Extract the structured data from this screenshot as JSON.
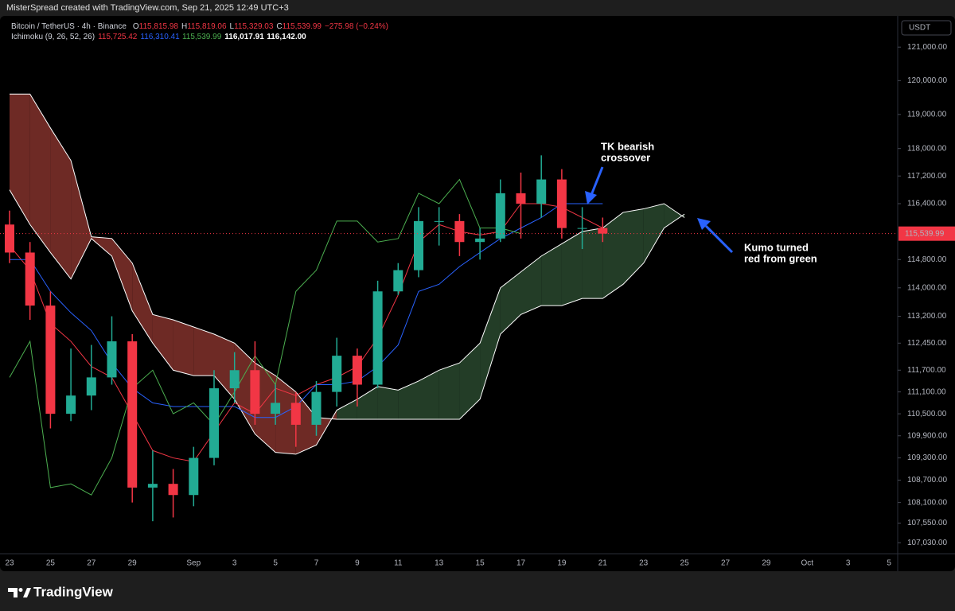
{
  "header": {
    "credit": "MisterSpread created with TradingView.com, Sep 21, 2025 12:49 UTC+3"
  },
  "footer": {
    "brand": "TradingView"
  },
  "chart_data": {
    "type": "candlestick",
    "legend": {
      "symbol": "Bitcoin / TetherUS · 4h · Binance",
      "ohlc": [
        {
          "key": "O",
          "value": "115,815.98"
        },
        {
          "key": "H",
          "value": "115,819.06"
        },
        {
          "key": "L",
          "value": "115,329.03"
        },
        {
          "key": "C",
          "value": "115,539.99"
        }
      ],
      "change": "−275.98 (−0.24%)",
      "indicator": "Ichimoku (9, 26, 52, 26)",
      "indicator_values": [
        {
          "value": "115,725.42",
          "color": "#f23645"
        },
        {
          "value": "116,310.41",
          "color": "#2962ff"
        },
        {
          "value": "115,539.99",
          "color": "#4caf50"
        },
        {
          "value": "116,017.91",
          "color": "#ffffff"
        },
        {
          "value": "116,142.00",
          "color": "#ffffff"
        }
      ]
    },
    "currency": "USDT",
    "categories": [
      "23",
      null,
      "25",
      null,
      "27",
      null,
      "29",
      null,
      null,
      "Sep",
      null,
      "3",
      null,
      "5",
      null,
      "7",
      null,
      "9",
      null,
      "11",
      null,
      "13",
      null,
      "15",
      null,
      "17",
      null,
      "19",
      null,
      "21",
      null,
      "23",
      null,
      "25",
      null,
      "27",
      null,
      "29",
      null,
      "Oct",
      null,
      "3",
      null,
      "5"
    ],
    "open": [
      115800,
      115000,
      113500,
      110500,
      111000,
      111500,
      112500,
      108500,
      108600,
      108300,
      109300,
      111200,
      111700,
      110500,
      110800,
      110200,
      111100,
      112100,
      111300,
      113900,
      114500,
      115900,
      115900,
      115300,
      115400,
      116700,
      116400,
      117100,
      115700,
      115700,
      null,
      null,
      null,
      null,
      null,
      null,
      null,
      null,
      null,
      null,
      null,
      null,
      null,
      null
    ],
    "high": [
      116200,
      115300,
      113900,
      112300,
      112400,
      113200,
      112700,
      109500,
      109000,
      109600,
      111700,
      112200,
      112500,
      111300,
      111100,
      111400,
      112600,
      112300,
      114200,
      114700,
      116300,
      116300,
      116100,
      115700,
      117100,
      117300,
      117800,
      117400,
      116300,
      116000,
      null,
      null,
      null,
      null,
      null,
      null,
      null,
      null,
      null,
      null,
      null,
      null,
      null,
      null
    ],
    "low": [
      114700,
      113100,
      110100,
      110300,
      110600,
      111300,
      108100,
      107600,
      107700,
      108000,
      109100,
      110800,
      110200,
      110200,
      109600,
      109900,
      110700,
      110700,
      111200,
      113800,
      114300,
      115200,
      114900,
      114800,
      115300,
      115400,
      116000,
      115400,
      115100,
      115300,
      null,
      null,
      null,
      null,
      null,
      null,
      null,
      null,
      null,
      null,
      null,
      null,
      null,
      null
    ],
    "close": [
      115000,
      113500,
      110500,
      111000,
      111500,
      112500,
      108500,
      108600,
      108300,
      109300,
      111200,
      111700,
      110500,
      110800,
      110200,
      111100,
      112100,
      111300,
      113900,
      114500,
      115900,
      115900,
      115300,
      115400,
      116700,
      116400,
      117100,
      115700,
      115700,
      115540,
      null,
      null,
      null,
      null,
      null,
      null,
      null,
      null,
      null,
      null,
      null,
      null,
      null,
      null
    ],
    "up_color": "#22ab94",
    "down_color": "#f23645",
    "lines": [
      {
        "color": "#f23645",
        "values": [
          115200,
          114500,
          113000,
          112500,
          111800,
          111500,
          110500,
          109500,
          109300,
          109200,
          110000,
          110800,
          110500,
          111200,
          111000,
          111300,
          111500,
          111800,
          112600,
          113800,
          115300,
          115800,
          115600,
          115500,
          115600,
          116400,
          116400,
          116300,
          116000,
          115700,
          null,
          null,
          null,
          null,
          null,
          null,
          null,
          null,
          null,
          null,
          null,
          null,
          null,
          null
        ]
      },
      {
        "color": "#2962ff",
        "values": [
          114800,
          114800,
          113900,
          113300,
          112800,
          111900,
          111200,
          110800,
          110700,
          110700,
          110700,
          110700,
          110400,
          110400,
          110700,
          111300,
          111300,
          111400,
          111800,
          112400,
          113900,
          114100,
          114600,
          115000,
          115400,
          115700,
          116000,
          116400,
          116400,
          116400,
          null,
          null,
          null,
          null,
          null,
          null,
          null,
          null,
          null,
          null,
          null,
          null,
          null,
          null
        ]
      },
      {
        "color": "#4caf50",
        "values": [
          111500,
          112500,
          108500,
          108600,
          108300,
          109300,
          111200,
          111700,
          110500,
          110800,
          110200,
          111100,
          112100,
          111300,
          113900,
          114500,
          115900,
          115900,
          115300,
          115400,
          116700,
          116400,
          117100,
          115700,
          115700,
          115540,
          null,
          null,
          null,
          null,
          null,
          null,
          null,
          null,
          null,
          null,
          null,
          null,
          null,
          null
        ]
      }
    ],
    "span_a": [
      116800,
      115800,
      115000,
      114250,
      115400,
      114900,
      113350,
      112450,
      111700,
      111550,
      111550,
      110900,
      109950,
      109450,
      109400,
      109650,
      110600,
      110900,
      111250,
      111150,
      111400,
      111700,
      111900,
      112450,
      114000,
      114450,
      114900,
      115250,
      115600,
      115700,
      116150,
      116250,
      116400,
      116000,
      null,
      null,
      null,
      null,
      null,
      null,
      null,
      null,
      null,
      null
    ],
    "span_b": [
      119600,
      119600,
      118600,
      117650,
      115450,
      115400,
      114700,
      113250,
      113100,
      112900,
      112700,
      112450,
      111900,
      111550,
      111100,
      110400,
      110350,
      110350,
      110350,
      110350,
      110350,
      110350,
      110350,
      110900,
      112700,
      113250,
      113500,
      113500,
      113700,
      113700,
      114100,
      114700,
      115700,
      116100,
      null,
      null,
      null,
      null,
      null,
      null,
      null,
      null,
      null,
      null
    ],
    "cloud_colors": {
      "bullish": "#233d27",
      "bearish": "#6e2a25",
      "edge": "#ffffff"
    },
    "last_price": {
      "value": 115539.99,
      "label": "115,539.99",
      "color": "#f23645"
    },
    "log_scale": true,
    "grid": false,
    "ylim": [
      106780,
      121890
    ],
    "yticks": [
      {
        "value": 121000,
        "label": "121,000.00"
      },
      {
        "value": 120000,
        "label": "120,000.00"
      },
      {
        "value": 119000,
        "label": "119,000.00"
      },
      {
        "value": 118000,
        "label": "118,000.00"
      },
      {
        "value": 117200,
        "label": "117,200.00"
      },
      {
        "value": 116400,
        "label": "116,400.00"
      },
      {
        "value": 114800,
        "label": "114,800.00"
      },
      {
        "value": 114000,
        "label": "114,000.00"
      },
      {
        "value": 113200,
        "label": "113,200.00"
      },
      {
        "value": 112450,
        "label": "112,450.00"
      },
      {
        "value": 111700,
        "label": "111,700.00"
      },
      {
        "value": 111100,
        "label": "111,100.00"
      },
      {
        "value": 110500,
        "label": "110,500.00"
      },
      {
        "value": 109900,
        "label": "109,900.00"
      },
      {
        "value": 109300,
        "label": "109,300.00"
      },
      {
        "value": 108700,
        "label": "108,700.00"
      },
      {
        "value": 108100,
        "label": "108,100.00"
      },
      {
        "value": 107550,
        "label": "107,550.00"
      },
      {
        "value": 107030,
        "label": "107,030.00"
      }
    ],
    "annotations": [
      {
        "lines": [
          "TK bearish",
          "crossover"
        ]
      },
      {
        "lines": [
          "Kumo turned",
          "red from green"
        ]
      }
    ]
  }
}
